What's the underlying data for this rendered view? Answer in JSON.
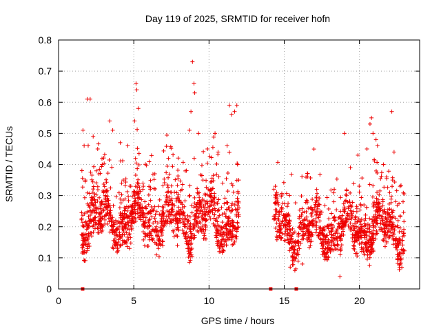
{
  "chart_data": {
    "type": "scatter",
    "title": "Day 119 of 2025, SRMTID for receiver hofn",
    "xlabel": "GPS time / hours",
    "ylabel": "SRMTID / TECUs",
    "xlim": [
      0,
      24
    ],
    "ylim": [
      0,
      0.8
    ],
    "xticks": [
      0,
      5,
      10,
      15,
      20
    ],
    "xtick_labels": [
      "0",
      "5",
      "10",
      "15",
      "20"
    ],
    "yticks": [
      0,
      0.1,
      0.2,
      0.3,
      0.4,
      0.5,
      0.6,
      0.7,
      0.8
    ],
    "ytick_labels": [
      "0",
      "0.1",
      "0.2",
      "0.3",
      "0.4",
      "0.5",
      "0.6",
      "0.7",
      "0.8"
    ],
    "grid": true,
    "marker": "+",
    "color": "#ee0000",
    "gap_markers_x": [
      1.6,
      14.1,
      15.8
    ],
    "series": [
      {
        "name": "SRMTID",
        "segments": [
          {
            "x_start": 1.5,
            "x_end": 12.0,
            "baseline": 0.19,
            "amp": 0.09,
            "seed": 11
          },
          {
            "x_start": 14.3,
            "x_end": 23.0,
            "baseline": 0.16,
            "amp": 0.08,
            "seed": 29
          }
        ],
        "points": [
          [
            1.55,
            0.38
          ],
          [
            1.62,
            0.51
          ],
          [
            1.7,
            0.46
          ],
          [
            1.78,
            0.35
          ],
          [
            1.9,
            0.61
          ],
          [
            2.1,
            0.61
          ],
          [
            2.2,
            0.17
          ],
          [
            2.3,
            0.49
          ],
          [
            2.6,
            0.45
          ],
          [
            2.9,
            0.4
          ],
          [
            3.3,
            0.27
          ],
          [
            3.4,
            0.54
          ],
          [
            3.6,
            0.51
          ],
          [
            3.8,
            0.22
          ],
          [
            4.1,
            0.47
          ],
          [
            4.3,
            0.35
          ],
          [
            4.6,
            0.46
          ],
          [
            4.8,
            0.33
          ],
          [
            5.05,
            0.54
          ],
          [
            5.15,
            0.66
          ],
          [
            5.2,
            0.64
          ],
          [
            5.3,
            0.58
          ],
          [
            5.6,
            0.32
          ],
          [
            6.1,
            0.32
          ],
          [
            6.4,
            0.37
          ],
          [
            6.7,
            0.24
          ],
          [
            7.2,
            0.21
          ],
          [
            7.6,
            0.25
          ],
          [
            7.9,
            0.14
          ],
          [
            8.2,
            0.32
          ],
          [
            8.5,
            0.38
          ],
          [
            8.7,
            0.51
          ],
          [
            8.8,
            0.57
          ],
          [
            8.9,
            0.73
          ],
          [
            9.0,
            0.66
          ],
          [
            9.05,
            0.63
          ],
          [
            9.3,
            0.5
          ],
          [
            9.6,
            0.35
          ],
          [
            9.9,
            0.45
          ],
          [
            10.1,
            0.3
          ],
          [
            10.4,
            0.5
          ],
          [
            10.6,
            0.44
          ],
          [
            10.9,
            0.34
          ],
          [
            11.2,
            0.46
          ],
          [
            11.35,
            0.59
          ],
          [
            11.5,
            0.56
          ],
          [
            11.7,
            0.57
          ],
          [
            11.85,
            0.59
          ],
          [
            11.9,
            0.4
          ],
          [
            14.5,
            0.31
          ],
          [
            14.8,
            0.21
          ],
          [
            15.4,
            0.07
          ],
          [
            16.2,
            0.08
          ],
          [
            17.1,
            0.27
          ],
          [
            18.3,
            0.28
          ],
          [
            18.7,
            0.04
          ],
          [
            19.0,
            0.5
          ],
          [
            19.4,
            0.39
          ],
          [
            19.9,
            0.43
          ],
          [
            20.3,
            0.27
          ],
          [
            20.5,
            0.45
          ],
          [
            20.7,
            0.53
          ],
          [
            20.8,
            0.55
          ],
          [
            20.9,
            0.5
          ],
          [
            21.1,
            0.48
          ],
          [
            21.2,
            0.46
          ],
          [
            21.6,
            0.4
          ],
          [
            22.15,
            0.57
          ],
          [
            22.3,
            0.44
          ],
          [
            22.7,
            0.33
          ],
          [
            22.9,
            0.28
          ]
        ]
      }
    ]
  }
}
